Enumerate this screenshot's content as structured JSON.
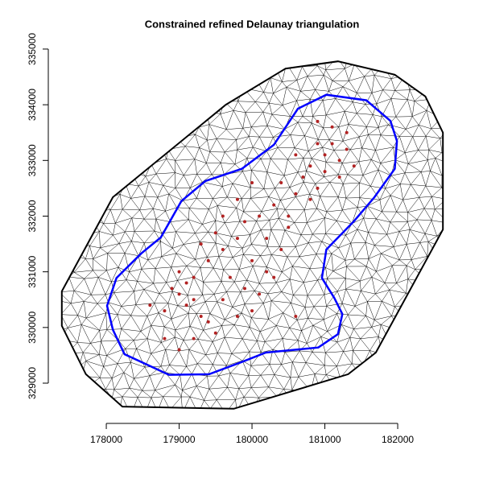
{
  "chart_data": {
    "type": "mesh",
    "title": "Constrained refined Delaunay triangulation",
    "xlim": [
      177300,
      182700
    ],
    "ylim": [
      328500,
      335300
    ],
    "xticks": [
      178000,
      179000,
      180000,
      181000,
      182000
    ],
    "yticks": [
      329000,
      330000,
      331000,
      332000,
      333000,
      334000,
      335000
    ],
    "outer_boundary": {
      "color": "#000000",
      "x": [
        177390,
        177390,
        177720,
        178220,
        179750,
        181320,
        181700,
        182250,
        182620,
        182620,
        182380,
        181960,
        181180,
        180460,
        179640,
        178090
      ],
      "y": [
        330650,
        330030,
        329160,
        328580,
        328540,
        329160,
        329550,
        330870,
        331760,
        333500,
        334150,
        334540,
        334780,
        334650,
        334000,
        332340
      ]
    },
    "inner_boundary": {
      "color": "#0000ff",
      "x": [
        178010,
        178090,
        178250,
        178860,
        179410,
        179860,
        180190,
        180910,
        181180,
        181240,
        181130,
        180960,
        181020,
        181400,
        181680,
        181960,
        181990,
        181900,
        181570,
        181020,
        180630,
        180300,
        179860,
        179360,
        179030,
        178750,
        178480,
        178140
      ],
      "y": [
        330390,
        329960,
        329520,
        329150,
        329160,
        329380,
        329550,
        329640,
        329880,
        330240,
        330530,
        330890,
        331400,
        331910,
        332340,
        332850,
        333350,
        333710,
        334080,
        334180,
        333930,
        333280,
        332850,
        332630,
        332270,
        331620,
        331330,
        330890
      ]
    },
    "points": {
      "color": "#b22222",
      "x": [
        178600,
        178800,
        179000,
        179100,
        179000,
        179200,
        179100,
        179300,
        178900,
        179200,
        179400,
        179500,
        179200,
        179000,
        178800,
        179600,
        179800,
        179400,
        179600,
        179800,
        179500,
        179900,
        180100,
        180000,
        180200,
        180400,
        180500,
        180300,
        180600,
        180400,
        180700,
        180900,
        180800,
        181000,
        181200,
        181100,
        181300,
        181000,
        180900,
        181200,
        181400,
        180600,
        180800,
        180500,
        180200,
        179700,
        179900,
        180100,
        180300,
        180600,
        180000,
        179300,
        179600,
        179800,
        180000,
        181100,
        180900,
        181300
      ],
      "y": [
        330400,
        330300,
        330600,
        330800,
        331000,
        330900,
        330400,
        330200,
        330700,
        330500,
        330100,
        329900,
        329800,
        329600,
        329800,
        330500,
        330200,
        331200,
        331400,
        331600,
        331700,
        331900,
        332000,
        331200,
        331000,
        331400,
        331800,
        332200,
        332400,
        332600,
        332700,
        332500,
        332900,
        333100,
        333000,
        333300,
        333200,
        332800,
        333300,
        332700,
        332900,
        333100,
        332300,
        332000,
        331600,
        330900,
        330700,
        330600,
        330900,
        330200,
        330300,
        331500,
        332000,
        332300,
        332600,
        333600,
        333700,
        333500
      ]
    }
  }
}
